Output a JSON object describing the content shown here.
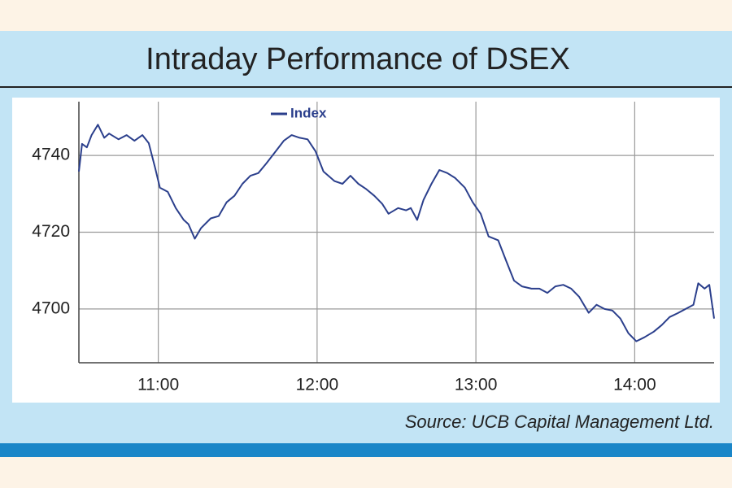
{
  "chart_data": {
    "type": "line",
    "title": "Intraday Performance of DSEX",
    "source": "Source: UCB Capital Management Ltd.",
    "x": [
      10.5,
      10.52,
      10.55,
      10.58,
      10.62,
      10.66,
      10.69,
      10.75,
      10.8,
      10.85,
      10.9,
      10.94,
      10.98,
      11.01,
      11.06,
      11.11,
      11.16,
      11.19,
      11.23,
      11.27,
      11.33,
      11.38,
      11.43,
      11.48,
      11.53,
      11.58,
      11.63,
      11.68,
      11.74,
      11.79,
      11.84,
      11.89,
      11.94,
      11.99,
      12.04,
      12.11,
      12.16,
      12.21,
      12.26,
      12.31,
      12.36,
      12.41,
      12.45,
      12.51,
      12.56,
      12.59,
      12.63,
      12.67,
      12.72,
      12.77,
      12.82,
      12.87,
      12.93,
      12.98,
      13.03,
      13.08,
      13.14,
      13.19,
      13.24,
      13.29,
      13.35,
      13.4,
      13.45,
      13.5,
      13.55,
      13.6,
      13.65,
      13.71,
      13.76,
      13.81,
      13.86,
      13.91,
      13.96,
      14.01,
      14.06,
      14.12,
      14.17,
      14.22,
      14.27,
      14.32,
      14.37,
      14.4,
      14.44,
      14.47,
      14.5
    ],
    "series": [
      {
        "name": "Index",
        "color": "#2b3f8c",
        "values": [
          4735.8,
          4743.0,
          4742.1,
          4745.3,
          4748.0,
          4744.6,
          4745.7,
          4744.2,
          4745.3,
          4743.8,
          4745.3,
          4743.2,
          4736.8,
          4731.6,
          4730.5,
          4726.3,
          4723.2,
          4722.1,
          4718.3,
          4721.1,
          4723.6,
          4724.2,
          4727.8,
          4729.5,
          4732.6,
          4734.7,
          4735.4,
          4737.9,
          4741.1,
          4743.8,
          4745.3,
          4744.6,
          4744.2,
          4741.1,
          4735.8,
          4733.3,
          4732.6,
          4734.7,
          4732.6,
          4731.2,
          4729.5,
          4727.4,
          4724.8,
          4726.3,
          4725.7,
          4726.3,
          4723.2,
          4728.4,
          4732.6,
          4736.2,
          4735.4,
          4734.1,
          4731.6,
          4727.8,
          4724.8,
          4718.9,
          4717.9,
          4712.6,
          4707.4,
          4705.9,
          4705.3,
          4705.3,
          4704.2,
          4705.9,
          4706.3,
          4705.3,
          4703.2,
          4699.0,
          4701.1,
          4700.0,
          4699.6,
          4697.5,
          4693.7,
          4691.6,
          4692.6,
          4694.1,
          4695.8,
          4697.9,
          4698.9,
          4700.0,
          4701.1,
          4706.7,
          4705.3,
          4706.3,
          4697.5
        ]
      }
    ],
    "xlim": [
      10.5,
      14.5
    ],
    "ylim": [
      4686,
      4754
    ],
    "xticks": [
      {
        "value": 11,
        "label": "11:00"
      },
      {
        "value": 12,
        "label": "12:00"
      },
      {
        "value": 13,
        "label": "13:00"
      },
      {
        "value": 14,
        "label": "14:00"
      }
    ],
    "yticks": [
      4700,
      4720,
      4740
    ],
    "grid": true,
    "legend": "top"
  }
}
